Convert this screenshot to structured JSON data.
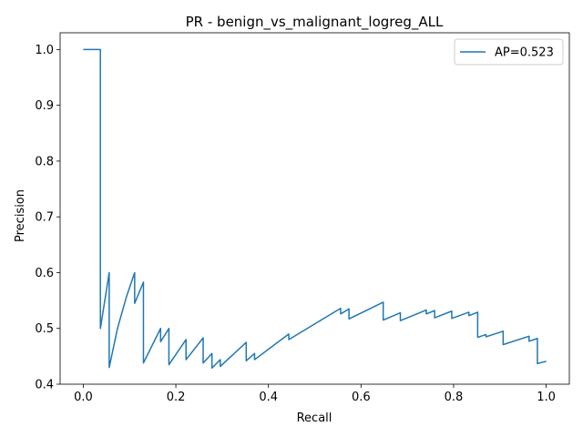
{
  "chart_data": {
    "type": "line",
    "title": "PR - benign_vs_malignant_logreg_ALL",
    "xlabel": "Recall",
    "ylabel": "Precision",
    "xlim": [
      -0.05,
      1.05
    ],
    "ylim": [
      0.4,
      1.03
    ],
    "xticks": [
      "0.0",
      "0.2",
      "0.4",
      "0.6",
      "0.8",
      "1.0"
    ],
    "yticks": [
      "0.4",
      "0.5",
      "0.6",
      "0.7",
      "0.8",
      "0.9",
      "1.0"
    ],
    "grid": false,
    "legend_position": "top-right",
    "series": [
      {
        "name": "AP=0.523",
        "color": "#1f77b4",
        "x": [
          0.0,
          0.037,
          0.037,
          0.037,
          0.056,
          0.056,
          0.056,
          0.074,
          0.093,
          0.111,
          0.111,
          0.13,
          0.13,
          0.13,
          0.167,
          0.167,
          0.185,
          0.185,
          0.185,
          0.222,
          0.222,
          0.259,
          0.259,
          0.278,
          0.278,
          0.296,
          0.296,
          0.352,
          0.352,
          0.37,
          0.37,
          0.444,
          0.444,
          0.556,
          0.556,
          0.574,
          0.574,
          0.648,
          0.648,
          0.685,
          0.685,
          0.741,
          0.741,
          0.759,
          0.759,
          0.796,
          0.796,
          0.833,
          0.833,
          0.852,
          0.852,
          0.87,
          0.87,
          0.907,
          0.907,
          0.963,
          0.963,
          0.981,
          0.981,
          1.0
        ],
        "y": [
          1.0,
          1.0,
          0.6,
          0.5,
          0.6,
          0.43,
          0.43,
          0.5,
          0.556,
          0.6,
          0.545,
          0.583,
          0.438,
          0.438,
          0.5,
          0.476,
          0.5,
          0.435,
          0.435,
          0.48,
          0.444,
          0.483,
          0.438,
          0.455,
          0.429,
          0.444,
          0.432,
          0.475,
          0.442,
          0.455,
          0.444,
          0.49,
          0.48,
          0.536,
          0.526,
          0.535,
          0.517,
          0.547,
          0.515,
          0.528,
          0.514,
          0.533,
          0.526,
          0.532,
          0.519,
          0.531,
          0.518,
          0.529,
          0.523,
          0.529,
          0.484,
          0.489,
          0.485,
          0.495,
          0.471,
          0.486,
          0.477,
          0.482,
          0.437,
          0.441
        ]
      }
    ]
  }
}
